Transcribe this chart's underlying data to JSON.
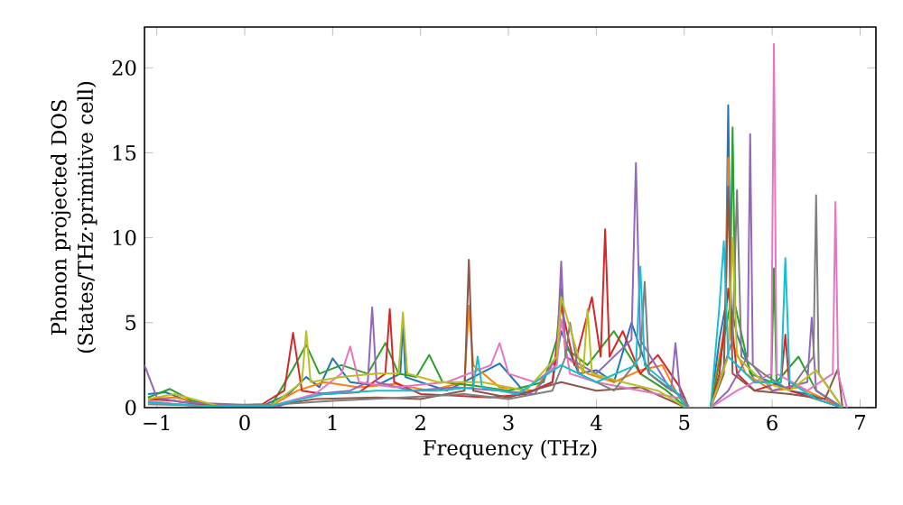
{
  "chart_data": {
    "type": "line",
    "xlabel": "Frequency (THz)",
    "ylabel": "Phonon projected DOS (States/THz·primitive cell)",
    "xlim": [
      -1.14,
      7.18
    ],
    "ylim": [
      0,
      22.4
    ],
    "xticks": [
      {
        "value": -1,
        "label": "−1"
      },
      0,
      1,
      2,
      3,
      4,
      5,
      6,
      7
    ],
    "yticks": [
      0,
      5,
      10,
      15,
      20
    ],
    "marker": "none",
    "line_style": "solid",
    "series": [
      {
        "color": "#1f77b4",
        "x": [
          -1.1,
          -0.9,
          -0.6,
          -0.3,
          0.2,
          0.5,
          0.7,
          0.85,
          1.0,
          1.2,
          1.5,
          1.77,
          1.8,
          1.83,
          2.0,
          2.3,
          2.6,
          2.9,
          3.2,
          3.5,
          3.6,
          3.8,
          4.0,
          4.2,
          4.4,
          4.6,
          4.8,
          5.0,
          5.05,
          5.3,
          5.4,
          5.47,
          5.5,
          5.53,
          5.6,
          5.8,
          6.0,
          6.2,
          6.4,
          6.6,
          6.8
        ],
        "values": [
          0.8,
          0.9,
          0.3,
          0.1,
          0.1,
          0.8,
          1.8,
          1.2,
          2.9,
          1.5,
          1.3,
          2.0,
          5.0,
          1.8,
          1.5,
          1.0,
          1.8,
          2.6,
          0.8,
          1.5,
          4.5,
          2.0,
          2.2,
          1.5,
          5.0,
          2.0,
          1.2,
          0.6,
          0,
          0,
          4.0,
          6.0,
          17.8,
          6.0,
          4.3,
          1.5,
          1.5,
          1.0,
          0.8,
          0.5,
          0
        ]
      },
      {
        "color": "#ff7f0e",
        "x": [
          -1.1,
          -0.8,
          -0.4,
          0.3,
          0.6,
          0.9,
          1.3,
          1.7,
          2.1,
          2.5,
          2.55,
          2.6,
          2.9,
          3.3,
          3.55,
          3.6,
          3.65,
          3.9,
          4.2,
          4.5,
          4.75,
          4.9,
          5.02,
          5.3,
          5.4,
          5.47,
          5.5,
          5.53,
          5.7,
          6.0,
          6.3,
          6.6,
          6.8
        ],
        "values": [
          0.5,
          0.6,
          0.2,
          0.1,
          1.0,
          1.5,
          1.2,
          1.4,
          1.0,
          1.5,
          6.0,
          2.5,
          1.2,
          1.0,
          3.0,
          7.5,
          3.0,
          2.0,
          1.5,
          2.2,
          2.5,
          1.0,
          0,
          0,
          3.0,
          5.0,
          14.7,
          4.0,
          2.0,
          1.0,
          1.2,
          0.5,
          0
        ]
      },
      {
        "color": "#2ca02c",
        "x": [
          -1.1,
          -0.85,
          -0.6,
          -0.3,
          0.3,
          0.55,
          0.7,
          0.85,
          1.1,
          1.4,
          1.6,
          1.75,
          1.95,
          2.1,
          2.25,
          2.6,
          3.0,
          3.4,
          3.55,
          3.6,
          3.65,
          3.9,
          4.2,
          4.5,
          4.8,
          5.02,
          5.3,
          5.45,
          5.52,
          5.55,
          5.58,
          5.75,
          5.99,
          6.02,
          6.05,
          6.3,
          6.5,
          6.8
        ],
        "values": [
          0.6,
          1.1,
          0.4,
          0.1,
          0.1,
          2.3,
          3.7,
          2.0,
          2.5,
          2.0,
          3.8,
          2.0,
          1.8,
          3.1,
          1.5,
          1.3,
          1.0,
          1.5,
          4.0,
          7.0,
          3.5,
          2.5,
          4.5,
          2.0,
          1.0,
          0,
          0,
          4.0,
          6.0,
          16.5,
          6.0,
          2.0,
          1.5,
          8.2,
          1.5,
          3.0,
          1.0,
          0
        ]
      },
      {
        "color": "#d62728",
        "x": [
          -1.1,
          -0.8,
          -0.4,
          0.2,
          0.45,
          0.55,
          0.65,
          0.9,
          1.3,
          1.6,
          1.65,
          1.7,
          2.0,
          2.4,
          2.8,
          3.2,
          3.5,
          3.6,
          3.75,
          3.95,
          4.05,
          4.1,
          4.15,
          4.3,
          4.5,
          4.7,
          4.95,
          5.05,
          5.3,
          5.4,
          5.5,
          5.6,
          5.8,
          6.1,
          6.15,
          6.2,
          6.5,
          6.8
        ],
        "values": [
          0.5,
          0.4,
          0.1,
          0.2,
          1.0,
          4.4,
          1.0,
          0.8,
          0.9,
          2.0,
          5.8,
          1.5,
          0.8,
          0.7,
          0.6,
          0.8,
          1.5,
          6.0,
          2.5,
          6.5,
          3.0,
          10.5,
          3.0,
          4.5,
          2.0,
          3.1,
          1.2,
          0,
          0,
          2.0,
          7.0,
          2.0,
          1.0,
          1.5,
          4.3,
          1.0,
          0.5,
          0
        ]
      },
      {
        "color": "#9467bd",
        "x": [
          -1.14,
          -1.0,
          -0.7,
          -0.3,
          0.4,
          0.8,
          1.2,
          1.4,
          1.45,
          1.5,
          1.9,
          2.4,
          2.9,
          3.3,
          3.55,
          3.6,
          3.65,
          4.0,
          4.4,
          4.45,
          4.5,
          4.85,
          4.9,
          4.95,
          5.03,
          5.3,
          5.5,
          5.72,
          5.75,
          5.78,
          6.0,
          6.4,
          6.45,
          6.5,
          6.8
        ],
        "values": [
          2.5,
          0.6,
          0.3,
          null,
          0.1,
          0.8,
          1.0,
          1.5,
          5.9,
          1.5,
          1.0,
          1.2,
          1.0,
          0.8,
          3.0,
          8.6,
          3.0,
          2.0,
          4.0,
          14.4,
          4.0,
          1.0,
          3.8,
          1.0,
          0,
          0,
          1.0,
          3.0,
          16.1,
          2.5,
          1.0,
          1.5,
          5.3,
          1.0,
          0
        ]
      },
      {
        "color": "#8c564b",
        "x": [
          -1.1,
          -0.5,
          0.3,
          0.8,
          1.5,
          2.0,
          2.5,
          2.55,
          2.6,
          3.0,
          3.6,
          4.0,
          4.5,
          5.02,
          5.3,
          5.45,
          5.5,
          5.55,
          5.8,
          6.2,
          6.6,
          6.75,
          6.8
        ],
        "values": [
          0.3,
          0.1,
          0.1,
          0.5,
          0.6,
          0.5,
          1.0,
          8.7,
          1.0,
          0.6,
          1.5,
          1.0,
          1.2,
          0,
          0,
          2.0,
          13.0,
          2.0,
          1.0,
          0.8,
          0.5,
          2.3,
          0
        ]
      },
      {
        "color": "#e377c2",
        "x": [
          -1.1,
          -0.6,
          0.3,
          0.8,
          1.1,
          1.2,
          1.3,
          1.7,
          2.3,
          2.8,
          2.9,
          3.0,
          3.3,
          3.55,
          3.6,
          3.7,
          4.0,
          4.5,
          5.0,
          5.05,
          5.3,
          5.6,
          5.99,
          6.02,
          6.05,
          6.4,
          6.69,
          6.72,
          6.75,
          6.85
        ],
        "values": [
          0.4,
          0.1,
          0.1,
          0.8,
          2.0,
          3.6,
          1.5,
          1.2,
          1.5,
          2.5,
          3.8,
          2.0,
          1.5,
          2.5,
          5.2,
          2.0,
          1.5,
          1.0,
          0.5,
          0,
          0,
          1.0,
          2.0,
          21.4,
          2.0,
          1.0,
          2.0,
          12.1,
          2.0,
          0
        ]
      },
      {
        "color": "#7f7f7f",
        "x": [
          -1.1,
          -0.4,
          0.4,
          1.0,
          1.8,
          2.5,
          3.0,
          3.5,
          3.65,
          3.7,
          3.8,
          4.2,
          4.5,
          4.55,
          4.6,
          5.0,
          5.05,
          5.3,
          5.55,
          5.6,
          5.65,
          5.9,
          6.2,
          6.47,
          6.5,
          6.53,
          6.8
        ],
        "values": [
          0.2,
          0.1,
          0.2,
          0.4,
          0.6,
          0.8,
          0.5,
          1.0,
          3.0,
          5.0,
          2.0,
          1.0,
          3.0,
          7.4,
          2.0,
          0.5,
          0,
          0,
          4.0,
          12.8,
          3.0,
          2.0,
          1.0,
          3.0,
          12.5,
          2.0,
          0
        ]
      },
      {
        "color": "#bcbd22",
        "x": [
          -1.1,
          -0.8,
          -0.3,
          0.3,
          0.65,
          0.7,
          0.75,
          1.1,
          1.5,
          1.75,
          1.8,
          1.85,
          2.2,
          2.7,
          3.2,
          3.55,
          3.6,
          3.85,
          3.9,
          3.95,
          4.3,
          4.7,
          5.02,
          5.3,
          5.5,
          5.55,
          5.6,
          5.9,
          6.2,
          6.5,
          6.8
        ],
        "values": [
          0.5,
          0.8,
          0.1,
          0.1,
          1.5,
          4.5,
          1.5,
          1.8,
          2.0,
          2.0,
          5.6,
          2.0,
          1.5,
          1.5,
          1.0,
          3.0,
          6.5,
          2.0,
          5.8,
          2.0,
          1.5,
          1.0,
          0,
          0,
          3.0,
          10.0,
          3.0,
          1.5,
          1.0,
          2.2,
          0
        ]
      },
      {
        "color": "#17becf",
        "x": [
          -1.1,
          -0.5,
          0.3,
          0.9,
          1.5,
          2.2,
          2.6,
          2.65,
          2.7,
          3.1,
          3.6,
          4.0,
          4.45,
          4.5,
          4.55,
          4.9,
          5.02,
          5.3,
          5.4,
          5.45,
          5.5,
          5.8,
          6.1,
          6.15,
          6.2,
          6.5,
          6.8
        ],
        "values": [
          0.3,
          0.1,
          0.1,
          0.8,
          1.0,
          1.0,
          1.2,
          3.0,
          1.2,
          0.8,
          2.5,
          1.5,
          2.5,
          8.3,
          2.5,
          1.0,
          0,
          0,
          6.0,
          9.8,
          3.0,
          1.5,
          1.5,
          8.8,
          1.5,
          0.5,
          0
        ]
      }
    ]
  }
}
